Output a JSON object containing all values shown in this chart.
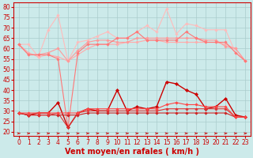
{
  "background_color": "#cceaea",
  "grid_color": "#aacccc",
  "xlabel": "Vent moyen/en rafales ( km/h )",
  "xlabel_color": "#cc0000",
  "xlabel_fontsize": 7,
  "ylabel_left_ticks": [
    20,
    25,
    30,
    35,
    40,
    45,
    50,
    55,
    60,
    65,
    70,
    75,
    80
  ],
  "xlim": [
    -0.5,
    23.5
  ],
  "ylim": [
    18,
    82
  ],
  "x": [
    0,
    1,
    2,
    3,
    4,
    5,
    6,
    7,
    8,
    9,
    10,
    11,
    12,
    13,
    14,
    15,
    16,
    17,
    18,
    19,
    20,
    21,
    22,
    23
  ],
  "series": [
    {
      "color": "#ffaaaa",
      "linewidth": 0.8,
      "marker": "D",
      "markersize": 1.8,
      "y": [
        62,
        58,
        56,
        57,
        56,
        54,
        57,
        60,
        62,
        62,
        62,
        63,
        63,
        64,
        64,
        63,
        63,
        63,
        63,
        63,
        63,
        62,
        60,
        54
      ]
    },
    {
      "color": "#ffbbbb",
      "linewidth": 0.8,
      "marker": "D",
      "markersize": 1.8,
      "y": [
        62,
        62,
        56,
        69,
        76,
        54,
        63,
        64,
        66,
        68,
        65,
        65,
        68,
        71,
        68,
        79,
        67,
        72,
        71,
        69,
        69,
        69,
        58,
        54
      ]
    },
    {
      "color": "#ff9999",
      "linewidth": 0.8,
      "marker": "D",
      "markersize": 1.8,
      "y": [
        62,
        57,
        57,
        58,
        60,
        54,
        59,
        63,
        64,
        64,
        63,
        63,
        65,
        65,
        65,
        65,
        65,
        65,
        65,
        64,
        64,
        61,
        60,
        54
      ]
    },
    {
      "color": "#ff7777",
      "linewidth": 0.8,
      "marker": "D",
      "markersize": 1.8,
      "y": [
        62,
        57,
        57,
        57,
        55,
        22,
        58,
        62,
        62,
        62,
        65,
        65,
        68,
        64,
        64,
        64,
        64,
        68,
        65,
        63,
        63,
        63,
        58,
        54
      ]
    },
    {
      "color": "#cc0000",
      "linewidth": 1.0,
      "marker": "D",
      "markersize": 2.2,
      "y": [
        29,
        28,
        29,
        29,
        34,
        22,
        29,
        31,
        30,
        30,
        40,
        30,
        32,
        31,
        32,
        44,
        43,
        40,
        38,
        31,
        32,
        36,
        28,
        27
      ]
    },
    {
      "color": "#cc2222",
      "linewidth": 0.8,
      "marker": "D",
      "markersize": 1.8,
      "y": [
        29,
        28,
        28,
        28,
        28,
        28,
        28,
        29,
        29,
        29,
        29,
        29,
        29,
        29,
        29,
        29,
        29,
        29,
        29,
        29,
        29,
        29,
        27,
        27
      ]
    },
    {
      "color": "#dd3333",
      "linewidth": 0.8,
      "marker": "D",
      "markersize": 1.8,
      "y": [
        29,
        28,
        28,
        28,
        29,
        22,
        29,
        30,
        30,
        30,
        30,
        30,
        30,
        30,
        30,
        31,
        31,
        31,
        31,
        31,
        31,
        31,
        27,
        27
      ]
    },
    {
      "color": "#ff4444",
      "linewidth": 0.8,
      "marker": "D",
      "markersize": 1.8,
      "y": [
        29,
        29,
        29,
        29,
        29,
        29,
        29,
        31,
        31,
        31,
        31,
        31,
        31,
        31,
        31,
        33,
        34,
        33,
        33,
        32,
        32,
        32,
        27,
        27
      ]
    }
  ],
  "arrow_color": "#cc0000",
  "tick_color": "#cc0000",
  "tick_fontsize": 5.5,
  "spine_color": "#cc0000"
}
